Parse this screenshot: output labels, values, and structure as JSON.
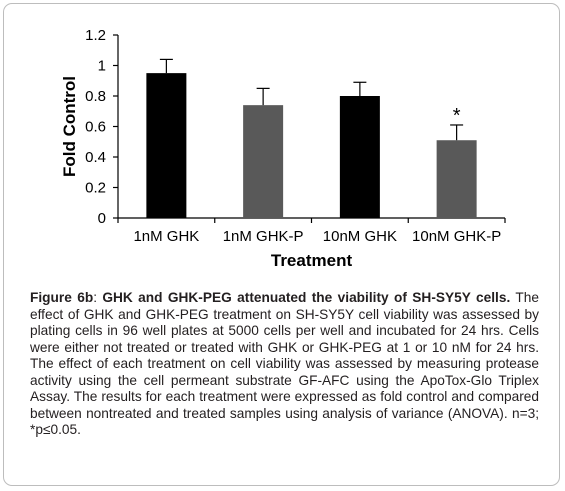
{
  "chart_data": {
    "type": "bar",
    "categories": [
      "1nM GHK",
      "1nM GHK-P",
      "10nM GHK",
      "10nM GHK-P"
    ],
    "values": [
      0.95,
      0.74,
      0.8,
      0.51
    ],
    "errors": [
      0.09,
      0.11,
      0.09,
      0.1
    ],
    "bar_colors": [
      "#000000",
      "#595959",
      "#000000",
      "#595959"
    ],
    "title": "",
    "xlabel": "Treatment",
    "ylabel": "Fold Control",
    "ylim": [
      0,
      1.2
    ],
    "yticks": [
      "0",
      "0.2",
      "0.4",
      "0.6",
      "0.8",
      "1",
      "1.2"
    ],
    "annotations": [
      {
        "category": "10nM GHK-P",
        "text": "*"
      }
    ],
    "grid": false,
    "legend": "none"
  },
  "caption": {
    "figure_label": "Figure 6b",
    "separator": ": ",
    "title": "GHK and GHK-PEG attenuated the viability of SH-SY5Y cells.",
    "body": " The effect of GHK and GHK-PEG treatment on SH-SY5Y cell viability was assessed by plating cells in 96 well plates at 5000 cells per well and incubated for 24 hrs. Cells were either not treated or treated with GHK or GHK-PEG at 1 or 10 nM for 24 hrs. The effect of each treatment on cell viability was assessed by measuring protease activity using the cell permeant substrate GF-AFC using the ApoTox-Glo Triplex Assay. The results for each treatment were expressed as fold control and compared between nontreated and treated samples using analysis of variance (ANOVA). n=3; *p≤0.05."
  }
}
